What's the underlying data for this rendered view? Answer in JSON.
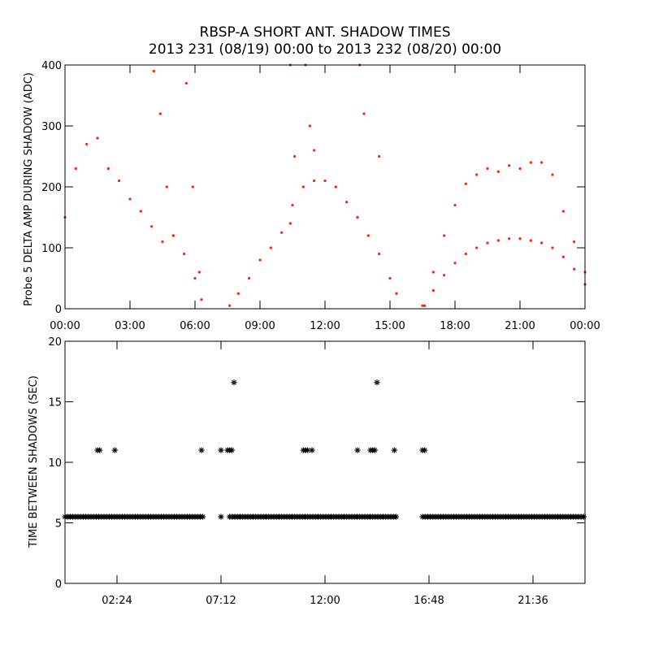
{
  "header": {
    "title": "RBSP-A SHORT ANT. SHADOW TIMES",
    "subtitle": "2013 231 (08/19) 00:00 to 2013 232 (08/20) 00:00"
  },
  "colors": {
    "top_points": "#ff2200",
    "bottom_points": "#000000",
    "axes": "#000000"
  },
  "chart_data": [
    {
      "type": "scatter",
      "title": "",
      "ylabel": "Probe 5 DELTA AMP DURING SHADOW (ADC)",
      "xlabel": "",
      "xlim": [
        0,
        24
      ],
      "ylim": [
        0,
        400
      ],
      "xtick_values": [
        0,
        3,
        6,
        9,
        12,
        15,
        18,
        21,
        24
      ],
      "xtick_labels": [
        "00:00",
        "03:00",
        "06:00",
        "09:00",
        "12:00",
        "15:00",
        "18:00",
        "21:00",
        "00:00"
      ],
      "ytick_values": [
        0,
        100,
        200,
        300,
        400
      ],
      "ytick_labels": [
        "0",
        "100",
        "200",
        "300",
        "400"
      ],
      "marker": "dot",
      "point_color": "#ff2200",
      "series": [
        {
          "x": [
            0.0,
            0.5,
            1.0,
            1.5,
            2.0,
            2.5,
            3.0,
            3.5,
            4.0,
            4.5,
            5.0,
            5.5,
            6.0,
            6.3
          ],
          "y": [
            150,
            230,
            270,
            280,
            230,
            210,
            180,
            160,
            135,
            110,
            120,
            90,
            50,
            15
          ]
        },
        {
          "x": [
            4.1,
            4.4,
            4.7,
            5.0,
            5.6,
            5.9,
            6.2
          ],
          "y": [
            390,
            320,
            200,
            120,
            370,
            200,
            60
          ]
        },
        {
          "x": [
            7.6,
            8.0,
            8.5,
            9.0,
            9.5,
            10.0,
            10.4
          ],
          "y": [
            5,
            25,
            50,
            80,
            100,
            125,
            140
          ]
        },
        {
          "x": [
            10.5,
            11.0,
            11.5,
            12.0,
            12.5,
            13.0,
            13.5,
            14.0,
            14.5,
            15.0,
            15.3
          ],
          "y": [
            170,
            200,
            210,
            210,
            200,
            175,
            150,
            120,
            90,
            50,
            25
          ]
        },
        {
          "x": [
            10.4,
            10.6,
            11.1,
            11.3,
            11.5,
            13.6,
            13.8,
            14.5
          ],
          "y": [
            400,
            250,
            400,
            300,
            260,
            400,
            320,
            250
          ]
        },
        {
          "x": [
            16.5,
            17.0,
            17.5,
            18.0,
            18.5,
            19.0,
            19.5,
            20.0,
            20.5,
            21.0,
            21.5,
            22.0,
            22.5,
            23.0,
            23.5,
            24.0
          ],
          "y": [
            5,
            60,
            120,
            170,
            205,
            220,
            230,
            225,
            235,
            230,
            240,
            240,
            220,
            160,
            110,
            60
          ]
        },
        {
          "x": [
            16.6,
            17.0,
            17.5,
            18.0,
            18.5,
            19.0,
            19.5,
            20.0,
            20.5,
            21.0,
            21.5,
            22.0,
            22.5,
            23.0,
            23.5,
            24.0
          ],
          "y": [
            5,
            30,
            55,
            75,
            90,
            100,
            108,
            112,
            115,
            115,
            112,
            108,
            100,
            85,
            65,
            40
          ]
        }
      ]
    },
    {
      "type": "scatter",
      "title": "",
      "ylabel": "TIME BETWEEN SHADOWS (SEC)",
      "xlabel": "",
      "xlim": [
        0,
        24
      ],
      "ylim": [
        0,
        20
      ],
      "xtick_values": [
        2.4,
        7.2,
        12.0,
        16.8,
        21.6
      ],
      "xtick_labels": [
        "02:24",
        "07:12",
        "12:00",
        "16:48",
        "21:36"
      ],
      "ytick_values": [
        0,
        5,
        10,
        15,
        20
      ],
      "ytick_labels": [
        "0",
        "5",
        "10",
        "15",
        "20"
      ],
      "marker": "asterisk",
      "point_color": "#000000",
      "baseline": {
        "y": 5.5,
        "segments": [
          [
            0.0,
            6.4
          ],
          [
            7.2,
            7.3
          ],
          [
            7.6,
            15.3
          ],
          [
            16.5,
            24.0
          ]
        ]
      },
      "series": [
        {
          "x": [
            1.5,
            1.6,
            2.3,
            6.3,
            7.2,
            7.5,
            7.6,
            7.7,
            11.0,
            11.1,
            11.2,
            11.4,
            13.5,
            14.1,
            14.2,
            14.3,
            15.2,
            16.5,
            16.6
          ],
          "y": [
            11,
            11,
            11,
            11,
            11,
            11,
            11,
            11,
            11,
            11,
            11,
            11,
            11,
            11,
            11,
            11,
            11,
            11,
            11
          ]
        },
        {
          "x": [
            7.8,
            14.4
          ],
          "y": [
            16.6,
            16.6
          ]
        }
      ]
    }
  ]
}
